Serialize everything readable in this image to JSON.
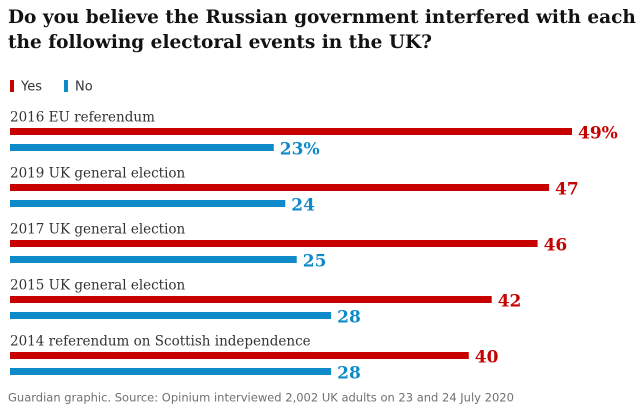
{
  "chart_data": {
    "type": "grouped-hbar",
    "title": [
      "Do you believe the Russian government interfered with each of",
      "the following electoral events in the UK?"
    ],
    "categories": [
      "2016 EU referendum",
      "2019 UK general election",
      "2017 UK general election",
      "2015 UK general election",
      "2014 referendum on Scottish independence"
    ],
    "series": [
      {
        "name": "Yes",
        "color": "#c70000",
        "values": [
          49,
          47,
          46,
          42,
          40
        ],
        "value_labels": [
          "49%",
          "47",
          "46",
          "42",
          "40"
        ]
      },
      {
        "name": "No",
        "color": "#0f8ac9",
        "values": [
          23,
          24,
          25,
          28,
          28
        ],
        "value_labels": [
          "23%",
          "24",
          "25",
          "28",
          "28"
        ]
      }
    ],
    "source": "Guardian graphic. Source: Opinium interviewed 2,002 UK adults on 23 and 24 July 2020"
  }
}
